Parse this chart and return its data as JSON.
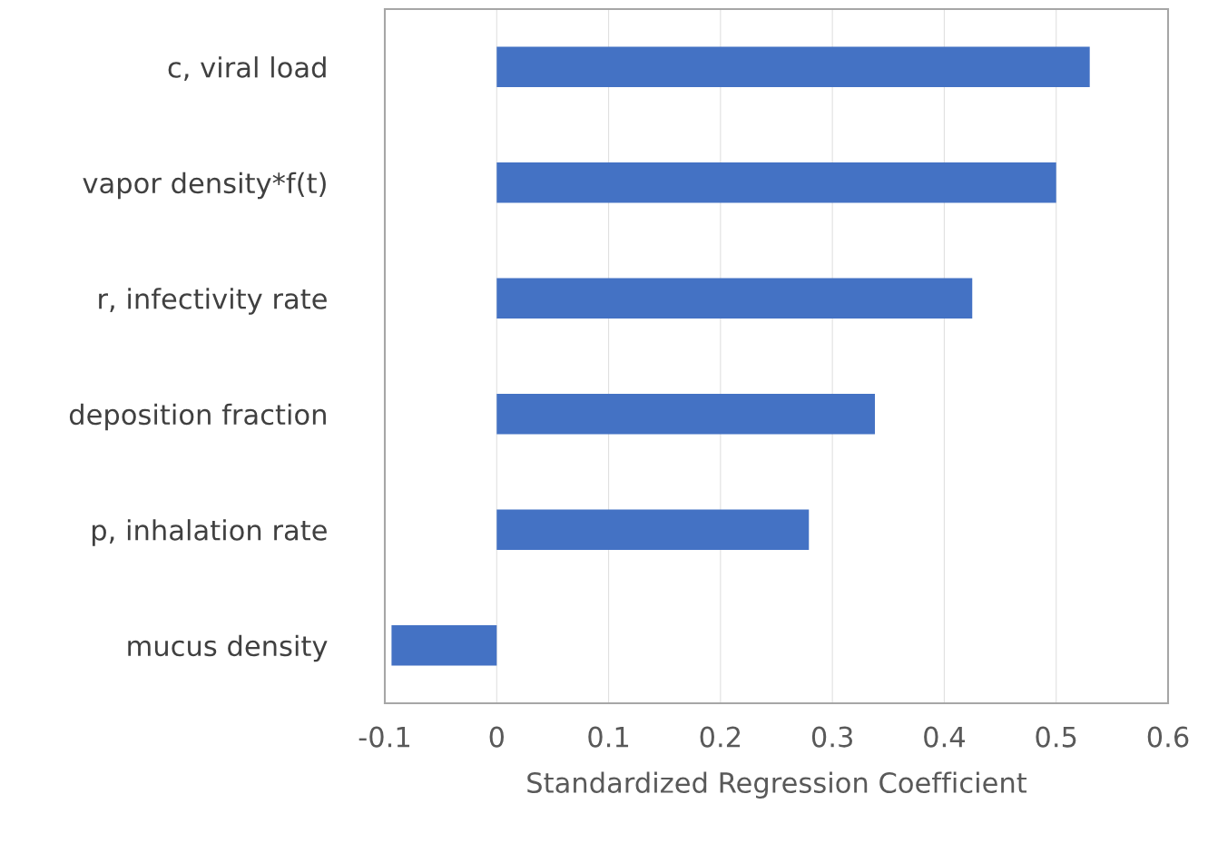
{
  "chart_data": {
    "type": "bar",
    "orientation": "horizontal",
    "xlabel": "Standardized Regression Coefficient",
    "categories": [
      "c, viral load",
      "vapor density*f(t)",
      "r, infectivity rate",
      "deposition fraction",
      "p, inhalation rate",
      "mucus density"
    ],
    "values": [
      0.53,
      0.5,
      0.425,
      0.338,
      0.279,
      -0.094
    ],
    "color": "#4472c4",
    "xlim": [
      -0.1,
      0.6
    ],
    "xticks": [
      -0.1,
      0,
      0.1,
      0.2,
      0.3,
      0.4,
      0.5,
      0.6
    ],
    "grid": "x",
    "legend": false
  }
}
